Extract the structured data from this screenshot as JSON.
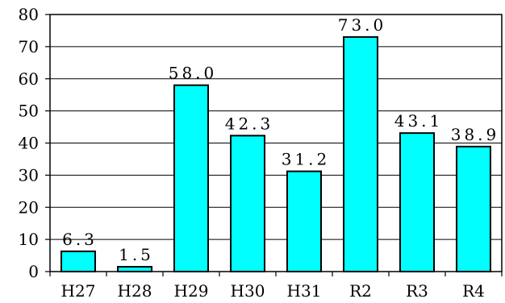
{
  "chart_data": {
    "type": "bar",
    "categories": [
      "H27",
      "H28",
      "H29",
      "H30",
      "H31",
      "R2",
      "R3",
      "R4"
    ],
    "values": [
      6.3,
      1.5,
      58.0,
      42.3,
      31.2,
      73.0,
      43.1,
      38.9
    ],
    "data_labels": [
      "6.3",
      "1.5",
      "58.0",
      "42.3",
      "31.2",
      "73.0",
      "43.1",
      "38.9"
    ],
    "title": "",
    "xlabel": "",
    "ylabel": "",
    "ylim": [
      0,
      80
    ],
    "yticks": [
      "0",
      "10",
      "20",
      "30",
      "40",
      "50",
      "60",
      "70",
      "80"
    ],
    "grid": true,
    "legend": "none",
    "bar_color": "#00ffff",
    "bar_edge_color": "#000000"
  }
}
